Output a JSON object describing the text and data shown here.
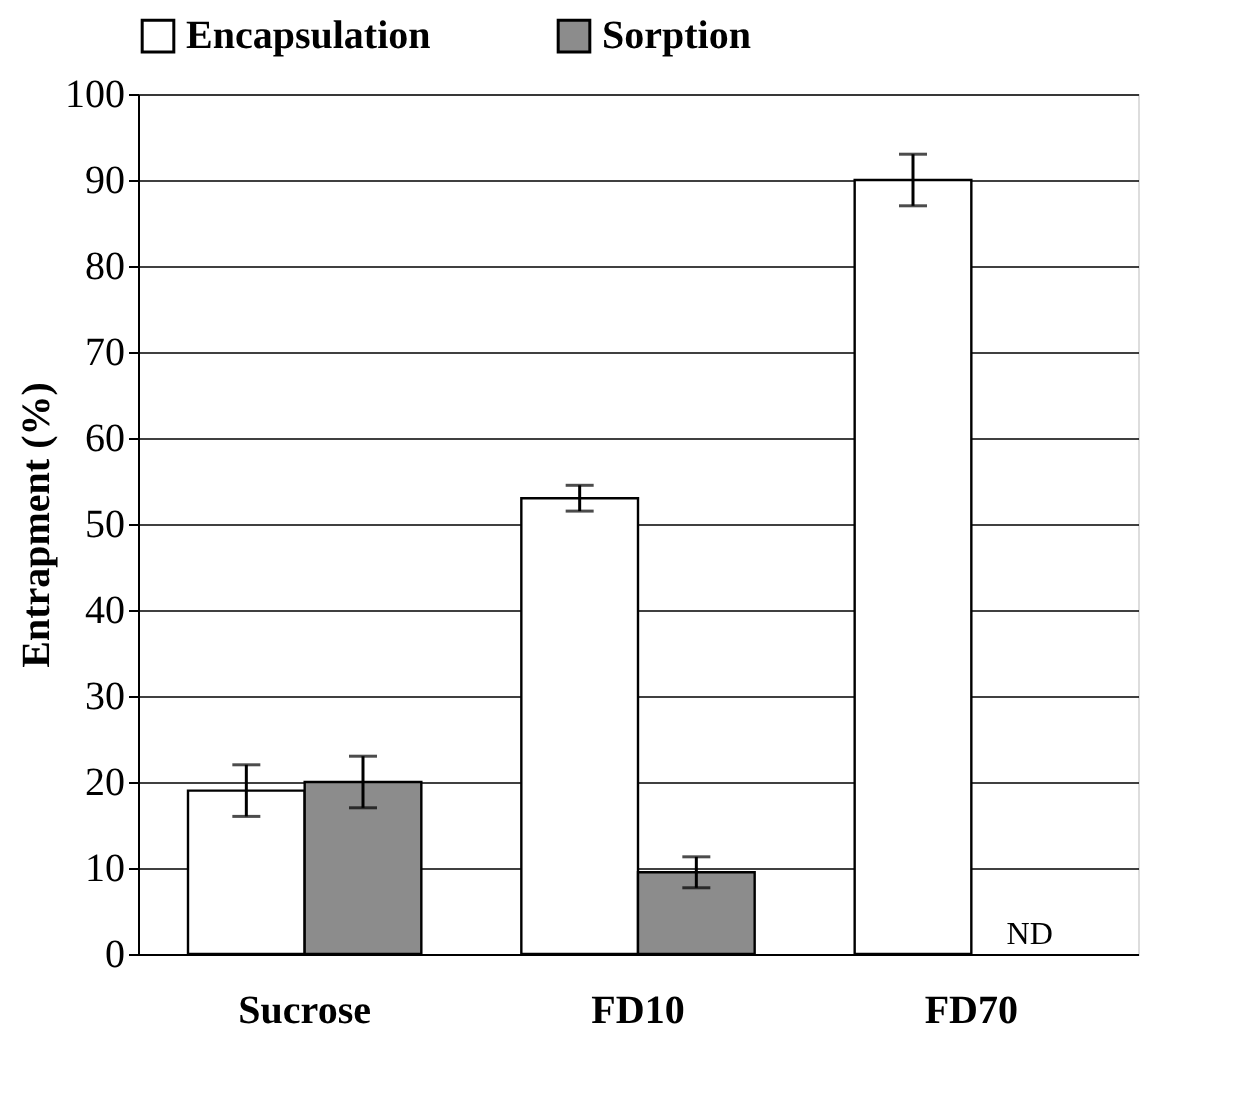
{
  "chart_data": {
    "type": "bar",
    "ylabel": "Entrapment (%)",
    "categories": [
      "Sucrose",
      "FD10",
      "FD70"
    ],
    "series": [
      {
        "name": "Encapsulation",
        "color": "#ffffff",
        "values": [
          19,
          53,
          90
        ],
        "errors": [
          3,
          1.5,
          3
        ]
      },
      {
        "name": "Sorption",
        "color": "#8c8c8c",
        "values": [
          20,
          9.5,
          null
        ],
        "errors": [
          3,
          1.8,
          null
        ]
      }
    ],
    "ylim": [
      0,
      100
    ],
    "yticks": [
      0,
      10,
      20,
      30,
      40,
      50,
      60,
      70,
      80,
      90,
      100
    ],
    "grid": "y",
    "legend": "top",
    "annotations": [
      {
        "text": "ND",
        "x": "FD70",
        "y": 0
      }
    ]
  }
}
